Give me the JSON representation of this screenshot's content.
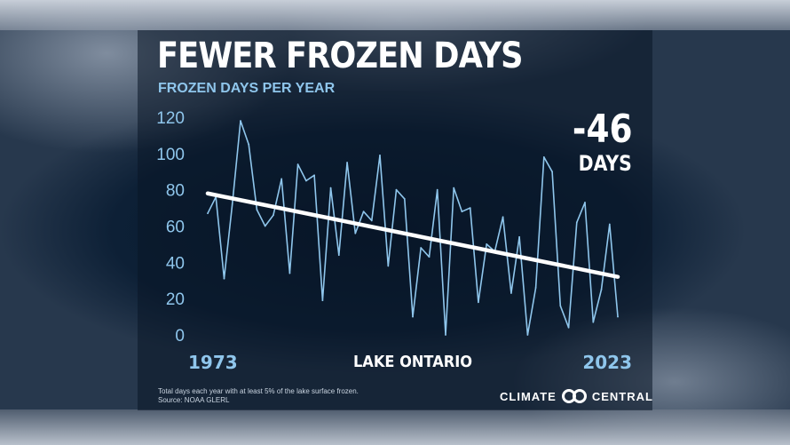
{
  "title": "FEWER FROZEN DAYS",
  "subtitle": "FROZEN DAYS PER YEAR",
  "change": {
    "value": "-46",
    "unit": "DAYS"
  },
  "lake_label": "LAKE ONTARIO",
  "footnote": {
    "line1": "Total days each year with at least 5% of the lake surface frozen.",
    "line2": "Source: NOAA GLERL"
  },
  "brand": {
    "left": "CLIMATE",
    "right": "CENTRAL",
    "logo_icon": "climate-central-logo-icon"
  },
  "colors": {
    "series": "#8fc6ec",
    "trend": "#ffffff",
    "accent_text": "#8fc6ec"
  },
  "chart_data": {
    "type": "line",
    "x_start": 1973,
    "x_end": 2023,
    "x_tick_labels": [
      "1973",
      "2023"
    ],
    "y_ticks": [
      0,
      20,
      40,
      60,
      80,
      100,
      120
    ],
    "ylim": [
      0,
      120
    ],
    "grid": false,
    "series": [
      {
        "values": [
          67,
          76,
          31,
          72,
          118,
          105,
          69,
          60,
          66,
          86,
          34,
          94,
          85,
          88,
          19,
          81,
          44,
          95,
          56,
          68,
          63,
          99,
          38,
          80,
          75,
          10,
          48,
          43,
          80,
          0,
          81,
          68,
          70,
          18,
          50,
          46,
          65,
          23,
          54,
          0,
          26,
          98,
          90,
          16,
          4,
          62,
          73,
          7,
          25,
          61,
          10
        ]
      }
    ],
    "trend": {
      "start": 78,
      "end": 32
    }
  }
}
